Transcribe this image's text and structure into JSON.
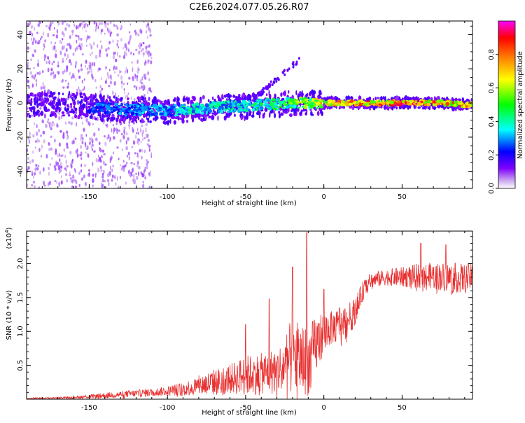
{
  "title": "C2E6.2024.077.05.26.R07",
  "chart_data": [
    {
      "type": "heatmap",
      "xlabel": "Height of straight line (km)",
      "ylabel": "Frequency (Hz)",
      "xlim": [
        -190,
        95
      ],
      "ylim": [
        -50,
        48
      ],
      "x_ticks": [
        -150,
        -100,
        -50,
        0,
        50
      ],
      "y_ticks": [
        -40,
        -20,
        0,
        20,
        40
      ],
      "x_tick_labels": [
        "-150",
        "-100",
        "-50",
        "0",
        "50"
      ],
      "y_tick_labels": [
        "-40",
        "-20",
        "0",
        "20",
        "40"
      ],
      "ridge": {
        "x": [
          -190,
          -175,
          -160,
          -150,
          -140,
          -125,
          -110,
          -100,
          -90,
          -75,
          -60,
          -50,
          -40,
          -30,
          -20,
          -10,
          0,
          15,
          30,
          45,
          60,
          75,
          90,
          95
        ],
        "freq_center": [
          -1,
          -1,
          -1,
          -2,
          -3,
          -4,
          -4,
          -5,
          -4,
          -3,
          -2,
          -2,
          -1,
          -1,
          0,
          0,
          0,
          0,
          0,
          0,
          0,
          0,
          -1,
          -1
        ],
        "amplitude": [
          0.05,
          0.1,
          0.2,
          0.25,
          0.3,
          0.3,
          0.35,
          0.35,
          0.4,
          0.4,
          0.4,
          0.4,
          0.45,
          0.5,
          0.55,
          0.6,
          0.75,
          0.8,
          0.85,
          0.85,
          0.9,
          0.85,
          0.8,
          0.75
        ]
      },
      "colorbar": {
        "label": "Normalized spectral amplitude",
        "range": [
          0,
          1
        ],
        "ticks": [
          0.0,
          0.2,
          0.4,
          0.6,
          0.8
        ],
        "tick_labels": [
          "0.0",
          "0.2",
          "0.4",
          "0.6",
          "0.8"
        ],
        "colors": [
          "#ffffff",
          "#c8a0f0",
          "#8000ff",
          "#0000ff",
          "#00ffff",
          "#00ff00",
          "#ffff00",
          "#ff8000",
          "#ff0000",
          "#ff00ff"
        ]
      }
    },
    {
      "type": "line",
      "xlabel": "Height of straight line (km)",
      "ylabel": "SNR (10 * v/v)",
      "y_multiplier": "(x10",
      "y_multiplier_exp": "4",
      "y_multiplier_close": ")",
      "xlim": [
        -190,
        95
      ],
      "ylim": [
        0,
        2.48
      ],
      "x_ticks": [
        -150,
        -100,
        -50,
        0,
        50
      ],
      "y_ticks": [
        0.5,
        1.0,
        1.5,
        2.0
      ],
      "x_tick_labels": [
        "-150",
        "-100",
        "-50",
        "0",
        "50"
      ],
      "y_tick_labels": [
        "0.5",
        "1.0",
        "1.5",
        "2.0"
      ],
      "color": "#e83030",
      "envelope": {
        "x": [
          -190,
          -170,
          -150,
          -130,
          -110,
          -100,
          -90,
          -80,
          -70,
          -60,
          -50,
          -40,
          -30,
          -25,
          -20,
          -15,
          -10,
          -5,
          0,
          5,
          10,
          15,
          20,
          25,
          30,
          40,
          50,
          60,
          70,
          80,
          90,
          95
        ],
        "mean": [
          0.01,
          0.02,
          0.04,
          0.07,
          0.1,
          0.12,
          0.15,
          0.2,
          0.25,
          0.3,
          0.35,
          0.38,
          0.42,
          0.5,
          0.65,
          0.6,
          0.55,
          0.8,
          1.0,
          1.05,
          1.1,
          1.15,
          1.3,
          1.6,
          1.75,
          1.8,
          1.8,
          1.82,
          1.82,
          1.8,
          1.78,
          1.8
        ],
        "spread": [
          0.01,
          0.01,
          0.03,
          0.05,
          0.06,
          0.07,
          0.1,
          0.15,
          0.2,
          0.22,
          0.3,
          0.3,
          0.35,
          0.4,
          0.6,
          0.55,
          0.5,
          0.45,
          0.3,
          0.25,
          0.25,
          0.25,
          0.2,
          0.15,
          0.12,
          0.12,
          0.15,
          0.18,
          0.2,
          0.22,
          0.22,
          0.2
        ]
      },
      "peaks": [
        {
          "x": -11,
          "y": 2.46
        },
        {
          "x": -20,
          "y": 1.95
        },
        {
          "x": -35,
          "y": 1.48
        },
        {
          "x": -50,
          "y": 1.1
        },
        {
          "x": 0,
          "y": 1.62
        },
        {
          "x": 10,
          "y": 1.35
        },
        {
          "x": 62,
          "y": 2.3
        },
        {
          "x": 78,
          "y": 2.28
        }
      ]
    }
  ]
}
